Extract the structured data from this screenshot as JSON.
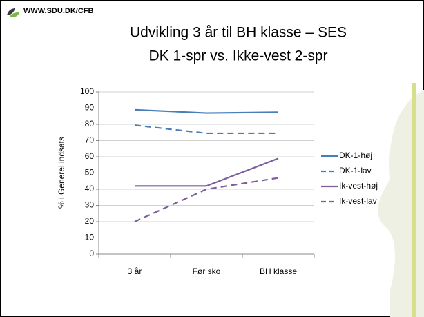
{
  "header": "WWW.SDU.DK/CFB",
  "chart_data": {
    "type": "line",
    "title": "Udvikling 3 år til BH klasse – SES",
    "subtitle": "DK 1-spr vs. Ikke-vest 2-spr",
    "y_label": "% i Generel indsats",
    "categories": [
      "3 år",
      "Før sko",
      "BH klasse"
    ],
    "series": [
      {
        "name": "DK-1-høj",
        "color": "#4a7ebb",
        "line_style": "solid",
        "values": [
          89,
          87,
          87.5
        ]
      },
      {
        "name": "DK-1-lav",
        "color": "#4a7ebb",
        "line_style": "dashed",
        "values": [
          79.5,
          74.5,
          74.5
        ]
      },
      {
        "name": "Ik-vest-høj",
        "color": "#7d5fa0",
        "line_style": "solid",
        "values": [
          42,
          42,
          59
        ]
      },
      {
        "name": "Ik-vest-lav",
        "color": "#7d5fa0",
        "line_style": "dashed",
        "values": [
          20,
          40,
          47
        ]
      }
    ],
    "ylim": [
      0,
      100
    ],
    "yticks": [
      0,
      10,
      20,
      30,
      40,
      50,
      60,
      70,
      80,
      90,
      100
    ],
    "grid": true,
    "legend": "right"
  }
}
